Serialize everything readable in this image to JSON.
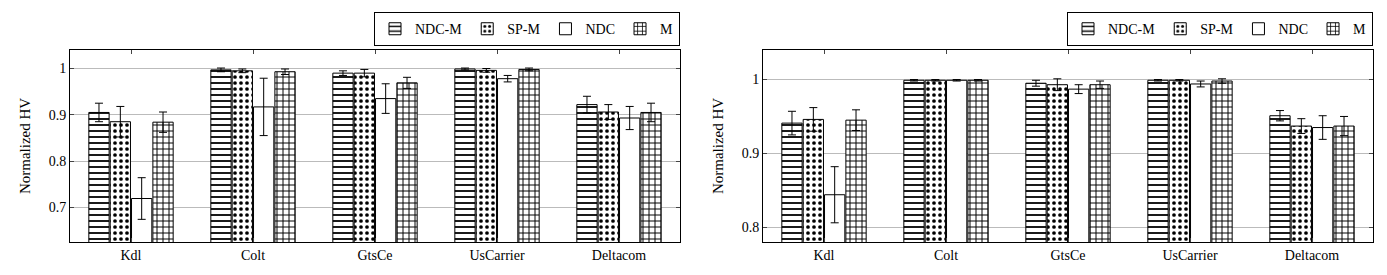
{
  "chart_data": [
    {
      "type": "bar",
      "y_label": "Normalized HV",
      "categories": [
        "Kdl",
        "Colt",
        "GtsCe",
        "UsCarrier",
        "Deltacom"
      ],
      "ylim": [
        0.625,
        1.04
      ],
      "yticks": [
        0.7,
        0.8,
        0.9,
        1
      ],
      "grid": true,
      "legend": "top right",
      "series": [
        {
          "name": "NDC-M",
          "color": "#000000",
          "marker": "hlines",
          "values": [
            0.905,
            0.997,
            0.99,
            0.999,
            0.922
          ],
          "errors": [
            0.02,
            0.004,
            0.005,
            0.002,
            0.018
          ]
        },
        {
          "name": "SP-M",
          "color": "#000000",
          "marker": "dots",
          "values": [
            0.885,
            0.995,
            0.99,
            0.996,
            0.906
          ],
          "errors": [
            0.033,
            0.004,
            0.008,
            0.004,
            0.016
          ]
        },
        {
          "name": "NDC",
          "color": "#000000",
          "marker": "none",
          "values": [
            0.719,
            0.917,
            0.935,
            0.978,
            0.893
          ],
          "errors": [
            0.045,
            0.062,
            0.032,
            0.007,
            0.025
          ]
        },
        {
          "name": "M",
          "color": "#000000",
          "marker": "grid",
          "values": [
            0.884,
            0.993,
            0.969,
            0.998,
            0.905
          ],
          "errors": [
            0.022,
            0.006,
            0.012,
            0.003,
            0.02
          ]
        }
      ]
    },
    {
      "type": "bar",
      "y_label": "Normalized HV",
      "categories": [
        "Kdl",
        "Colt",
        "GtsCe",
        "UsCarrier",
        "Deltacom"
      ],
      "ylim": [
        0.78,
        1.04
      ],
      "yticks": [
        0.8,
        0.9,
        1
      ],
      "grid": true,
      "legend": "top right",
      "series": [
        {
          "name": "NDC-M",
          "color": "#000000",
          "marker": "hlines",
          "values": [
            0.941,
            0.999,
            0.995,
            0.999,
            0.951
          ],
          "errors": [
            0.016,
            0.001,
            0.004,
            0.001,
            0.007
          ]
        },
        {
          "name": "SP-M",
          "color": "#000000",
          "marker": "dots",
          "values": [
            0.946,
            0.999,
            0.993,
            0.999,
            0.937
          ],
          "errors": [
            0.016,
            0.001,
            0.008,
            0.001,
            0.01
          ]
        },
        {
          "name": "NDC",
          "color": "#000000",
          "marker": "none",
          "values": [
            0.844,
            0.999,
            0.987,
            0.994,
            0.935
          ],
          "errors": [
            0.038,
            0.001,
            0.006,
            0.004,
            0.016
          ]
        },
        {
          "name": "M",
          "color": "#000000",
          "marker": "grid",
          "values": [
            0.945,
            0.999,
            0.993,
            0.998,
            0.937
          ],
          "errors": [
            0.014,
            0.001,
            0.005,
            0.003,
            0.013
          ]
        }
      ]
    }
  ]
}
